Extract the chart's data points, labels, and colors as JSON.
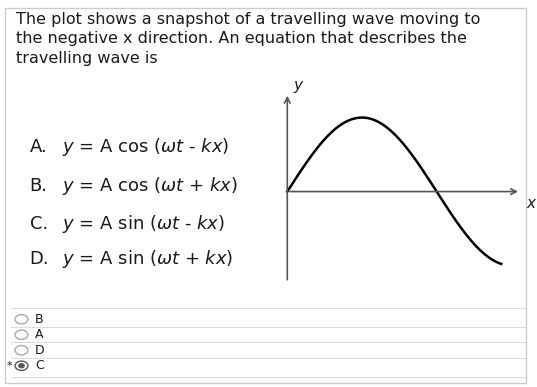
{
  "title_text": "The plot shows a snapshot of a travelling wave moving to\nthe negative x direction. An equation that describes the\ntravelling wave is",
  "answer_options": [
    "B",
    "A",
    "D",
    "C"
  ],
  "selected_answer": "C",
  "wave_color": "#000000",
  "axis_color": "#555555",
  "text_color": "#1a1a1a",
  "bg_color": "#ffffff",
  "title_fontsize": 11.5,
  "option_fontsize": 13,
  "answer_fontsize": 9,
  "separator_color": "#cccccc",
  "radio_color_selected": "#555555",
  "radio_color_unselected": "#aaaaaa"
}
